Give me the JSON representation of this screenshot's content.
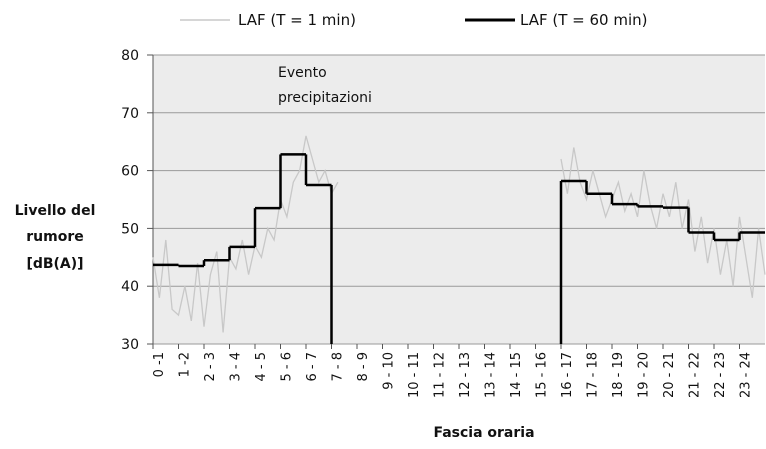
{
  "chart_data": {
    "type": "step",
    "y_label": [
      "Livello del",
      "rumore",
      "[dB(A)]"
    ],
    "x_label": "Fascia oraria",
    "annotation": [
      "Evento",
      "precipitazioni"
    ],
    "categories": [
      "0 -1",
      "1 -2",
      "2 - 3",
      "3 - 4",
      "4 - 5",
      "5 - 6",
      "6 - 7",
      "7 - 8",
      "8 - 9",
      "9 - 10",
      "10 - 11",
      "11 - 12",
      "12 - 13",
      "13 - 14",
      "14 - 15",
      "15 - 16",
      "16 - 17",
      "17 - 18",
      "18 - 19",
      "19 - 20",
      "20 - 21",
      "21 - 22",
      "22 - 23",
      "23 - 24"
    ],
    "ylim": [
      30,
      80
    ],
    "yticks": [
      30,
      40,
      50,
      60,
      70,
      80
    ],
    "grid": true,
    "legend": "top",
    "series": [
      {
        "name": "LAF (T = 1 min)",
        "color": "#c8c8c8",
        "x": [
          0,
          0.25,
          0.5,
          0.75,
          1,
          1.25,
          1.5,
          1.75,
          2,
          2.25,
          2.5,
          2.75,
          3,
          3.25,
          3.5,
          3.75,
          4,
          4.25,
          4.5,
          4.75,
          5,
          5.25,
          5.5,
          5.75,
          6,
          6.25,
          6.5,
          6.75,
          7,
          7.25,
          12,
          16,
          16.25,
          16.5,
          16.75,
          17,
          17.25,
          17.5,
          17.75,
          18,
          18.25,
          18.5,
          18.75,
          19,
          19.25,
          19.5,
          19.75,
          20,
          20.25,
          20.5,
          20.75,
          21,
          21.25,
          21.5,
          21.75,
          22,
          22.25,
          22.5,
          22.75,
          23,
          23.25,
          23.5,
          23.75,
          24
        ],
        "values": [
          45,
          38,
          48,
          36,
          35,
          40,
          34,
          44,
          33,
          42,
          46,
          32,
          45,
          43,
          48,
          42,
          47,
          45,
          50,
          48,
          55,
          52,
          58,
          60,
          66,
          62,
          58,
          60,
          56,
          58,
          null,
          62,
          56,
          64,
          58,
          55,
          60,
          56,
          52,
          55,
          58,
          53,
          56,
          52,
          60,
          54,
          50,
          56,
          52,
          58,
          50,
          55,
          46,
          52,
          44,
          50,
          42,
          48,
          40,
          52,
          45,
          38,
          50,
          42
        ]
      },
      {
        "name": "LAF (T = 60 min)",
        "color": "#000000",
        "values": [
          43.7,
          43.5,
          44.5,
          46.8,
          53.5,
          62.8,
          57.5,
          null,
          null,
          null,
          null,
          null,
          null,
          null,
          null,
          null,
          58.2,
          56,
          54.2,
          53.8,
          53.6,
          49.3,
          48,
          49.3
        ]
      }
    ]
  }
}
